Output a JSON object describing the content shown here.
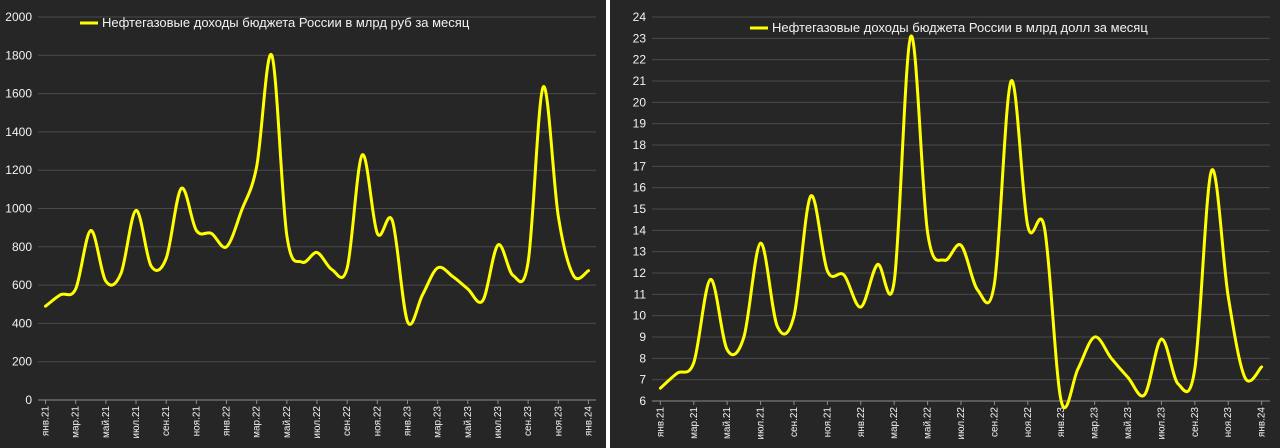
{
  "colors": {
    "background": "#262626",
    "grid": "#4a4a4a",
    "line": "#ffff00",
    "text": "#f2f2f2"
  },
  "chart_data": [
    {
      "type": "line",
      "legend": "Нефтегазовые доходы бюджета России в млрд руб за месяц",
      "legend_position": "top-left",
      "grid": true,
      "ylim": [
        0,
        2000
      ],
      "yticks": [
        0,
        200,
        400,
        600,
        800,
        1000,
        1200,
        1400,
        1600,
        1800,
        2000
      ],
      "x_tick_labels": [
        "янв.21",
        "мар.21",
        "май.21",
        "июл.21",
        "сен.21",
        "ноя.21",
        "янв.22",
        "мар.22",
        "май.22",
        "июл.22",
        "сен.22",
        "ноя.22",
        "янв.23",
        "мар.23",
        "май.23",
        "июл.23",
        "сен.23",
        "ноя.23",
        "янв.24"
      ],
      "series": [
        {
          "name": "Нефтегазовые доходы бюджета России в млрд руб за месяц",
          "values": [
            490,
            550,
            580,
            885,
            620,
            660,
            990,
            700,
            740,
            1105,
            885,
            870,
            800,
            990,
            1220,
            1800,
            860,
            720,
            770,
            680,
            690,
            1280,
            870,
            935,
            410,
            550,
            690,
            645,
            580,
            520,
            810,
            650,
            720,
            1635,
            960,
            650,
            675
          ]
        }
      ]
    },
    {
      "type": "line",
      "legend": "Нефтегазовые доходы бюджета России в млрд долл за месяц",
      "legend_position": "top-left",
      "grid": true,
      "ylim": [
        6,
        24
      ],
      "yticks": [
        6,
        7,
        8,
        9,
        10,
        11,
        12,
        13,
        14,
        15,
        16,
        17,
        18,
        19,
        20,
        21,
        22,
        23,
        24
      ],
      "x_tick_labels": [
        "янв.21",
        "мар.21",
        "май.21",
        "июл.21",
        "сен.21",
        "ноя.21",
        "янв.22",
        "мар.22",
        "май.22",
        "июл.22",
        "сен.22",
        "ноя.22",
        "янв.23",
        "мар.23",
        "май.23",
        "июл.23",
        "сен.23",
        "ноя.23",
        "янв.24"
      ],
      "series": [
        {
          "name": "Нефтегазовые доходы бюджета России в млрд долл за месяц",
          "values": [
            6.6,
            7.3,
            7.8,
            11.7,
            8.4,
            9.0,
            13.4,
            9.5,
            10.0,
            15.6,
            12.1,
            11.9,
            10.4,
            12.4,
            11.6,
            23.1,
            13.9,
            12.6,
            13.3,
            11.2,
            11.5,
            21.0,
            14.2,
            14.1,
            6.0,
            7.5,
            9.0,
            8.0,
            7.1,
            6.3,
            8.9,
            6.8,
            7.5,
            16.8,
            10.9,
            7.1,
            7.6
          ]
        }
      ]
    }
  ]
}
